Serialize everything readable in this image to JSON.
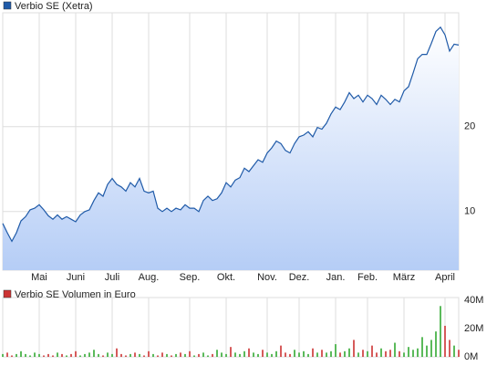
{
  "chart_data": [
    {
      "type": "line",
      "legend": "Verbio SE (Xetra)",
      "color": "#1f5aa8",
      "grid": true,
      "xlim": [
        0,
        100
      ],
      "xticks": [
        {
          "value": 8,
          "label": "Mai"
        },
        {
          "value": 16,
          "label": "Juni"
        },
        {
          "value": 24,
          "label": "Juli"
        },
        {
          "value": 32,
          "label": "Aug."
        },
        {
          "value": 41,
          "label": "Sep."
        },
        {
          "value": 49,
          "label": "Okt."
        },
        {
          "value": 58,
          "label": "Nov."
        },
        {
          "value": 65,
          "label": "Dez."
        },
        {
          "value": 73,
          "label": "Jan."
        },
        {
          "value": 80,
          "label": "Feb."
        },
        {
          "value": 88,
          "label": "März"
        },
        {
          "value": 97,
          "label": "April"
        }
      ],
      "ylim": [
        3.1,
        33.4
      ],
      "yticks": [
        10,
        20
      ],
      "values": [
        8.6,
        7.5,
        6.5,
        7.5,
        8.9,
        9.4,
        10.2,
        10.4,
        10.8,
        10.2,
        9.5,
        9.1,
        9.6,
        9.1,
        9.4,
        9.1,
        8.8,
        9.6,
        10.0,
        10.2,
        11.3,
        12.2,
        11.8,
        13.2,
        13.9,
        13.2,
        12.9,
        12.4,
        13.4,
        12.9,
        13.9,
        12.4,
        12.2,
        12.4,
        10.4,
        10.0,
        10.4,
        10.0,
        10.4,
        10.2,
        10.8,
        10.4,
        10.4,
        10.0,
        11.3,
        11.8,
        11.3,
        11.5,
        12.2,
        13.4,
        12.9,
        13.7,
        14.0,
        15.1,
        14.7,
        15.4,
        16.1,
        15.8,
        16.9,
        17.5,
        18.3,
        18.0,
        17.2,
        16.9,
        18.0,
        18.8,
        19.0,
        19.4,
        18.8,
        19.9,
        19.7,
        20.4,
        21.5,
        22.3,
        22.0,
        22.9,
        24.0,
        23.3,
        23.7,
        22.9,
        23.7,
        23.3,
        22.6,
        23.7,
        23.2,
        22.6,
        23.2,
        22.9,
        24.2,
        24.7,
        26.3,
        28.0,
        28.5,
        28.5,
        29.8,
        31.2,
        31.7,
        30.8,
        28.9,
        29.7,
        29.6
      ]
    },
    {
      "type": "bar",
      "legend": "Verbio SE Volumen in Euro",
      "color": "#cc3333",
      "up_color": "#33aa33",
      "down_color": "#cc3333",
      "xlim": [
        0,
        100
      ],
      "ylim": [
        0,
        42
      ],
      "yticks": [
        {
          "value": 0,
          "label": "0M"
        },
        {
          "value": 20,
          "label": "20M"
        },
        {
          "value": 40,
          "label": "40M"
        }
      ],
      "values": [
        2,
        3,
        1,
        2,
        4,
        2,
        1,
        3,
        2,
        1,
        2,
        1,
        3,
        2,
        1,
        2,
        4,
        1,
        2,
        3,
        5,
        2,
        1,
        3,
        2,
        6,
        2,
        1,
        2,
        3,
        2,
        1,
        4,
        2,
        1,
        3,
        2,
        1,
        2,
        3,
        2,
        4,
        1,
        2,
        3,
        1,
        2,
        5,
        3,
        2,
        7,
        3,
        2,
        4,
        6,
        3,
        2,
        5,
        3,
        2,
        4,
        8,
        3,
        2,
        5,
        3,
        4,
        2,
        6,
        3,
        5,
        3,
        4,
        9,
        3,
        4,
        6,
        12,
        3,
        5,
        4,
        8,
        3,
        6,
        4,
        5,
        10,
        4,
        3,
        7,
        5,
        6,
        14,
        8,
        12,
        18,
        36,
        22,
        12,
        8,
        5
      ]
    }
  ]
}
